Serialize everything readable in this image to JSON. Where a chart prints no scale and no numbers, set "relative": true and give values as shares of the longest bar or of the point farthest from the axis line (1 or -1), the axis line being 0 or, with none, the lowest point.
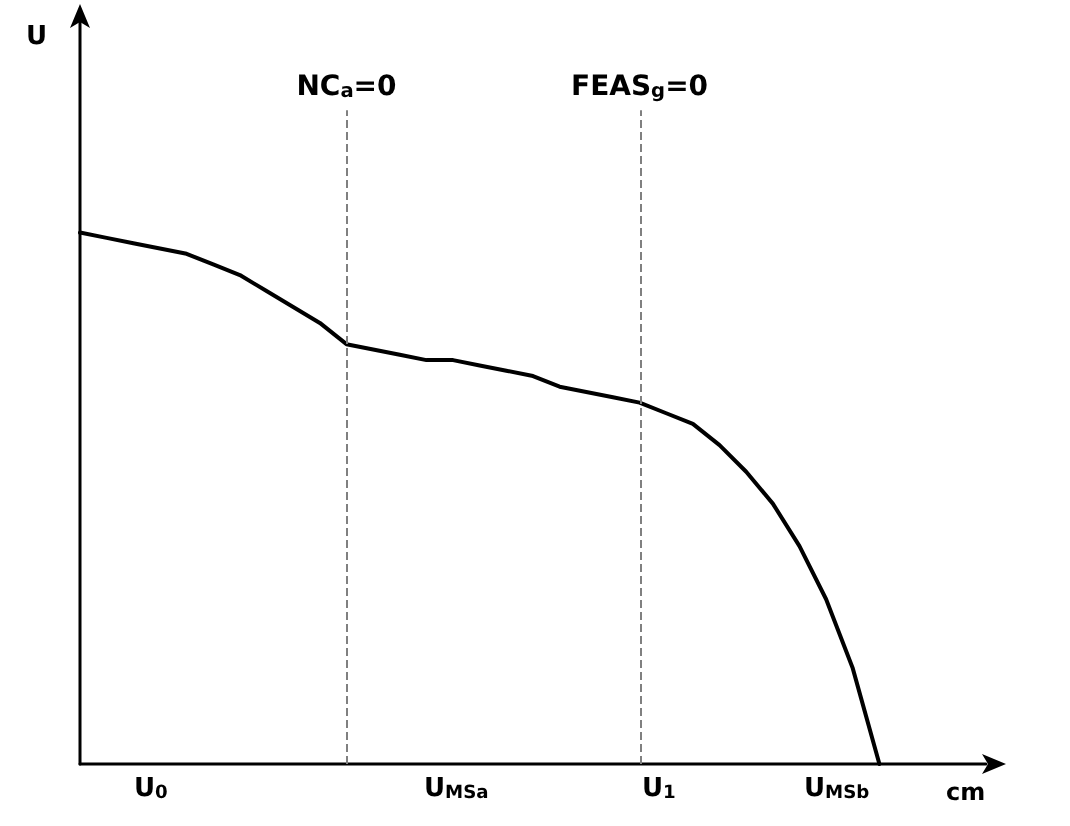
{
  "chart_data": {
    "type": "line",
    "relative": true,
    "xlabel": "cm",
    "grid": false,
    "marker": "none",
    "line_style": "solid",
    "categories": [
      null,
      null,
      null,
      null,
      null,
      null,
      null,
      null,
      null,
      null,
      null,
      null,
      null,
      null,
      null,
      null,
      null,
      null,
      null,
      null,
      null,
      null,
      null,
      null,
      null,
      null,
      null,
      null,
      null,
      null,
      null,
      null,
      null,
      null,
      null
    ],
    "series": [
      {
        "color": "#000000",
        "values": [
          1.0,
          0.99,
          0.98,
          0.97,
          0.96,
          0.94,
          0.92,
          0.89,
          0.86,
          0.83,
          0.79,
          0.78,
          0.77,
          0.76,
          0.76,
          0.75,
          0.74,
          0.73,
          0.71,
          0.7,
          0.69,
          0.68,
          0.66,
          0.64,
          0.6,
          0.55,
          0.49,
          0.41,
          0.31,
          0.18,
          0,
          null,
          null,
          null,
          null
        ]
      }
    ],
    "annotations": [
      "NC$_{a}$=0",
      "FEAS$_{g}$=0",
      "U$_{0}$",
      "U$_{MSa}$",
      "U$_{1}$",
      "U$_{MSb}$",
      "U"
    ]
  }
}
